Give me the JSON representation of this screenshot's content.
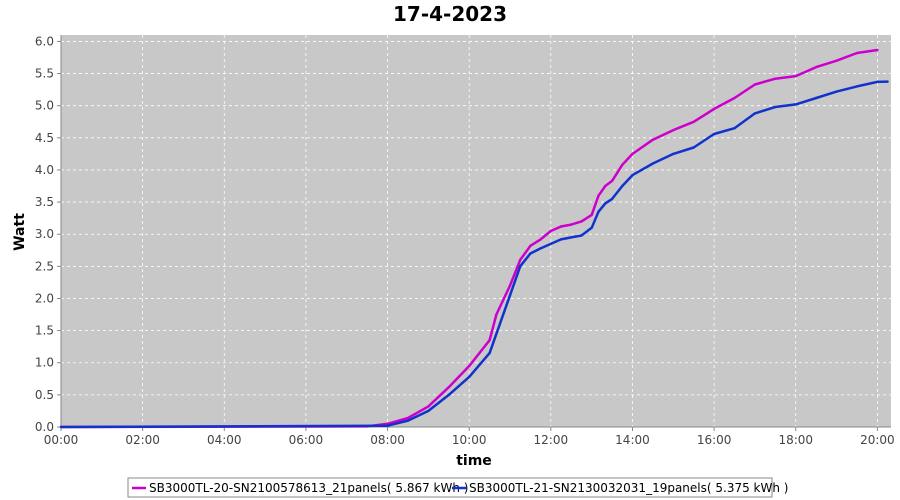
{
  "chart_data": {
    "type": "line",
    "title": "17-4-2023",
    "xlabel": "time",
    "ylabel": "Watt",
    "xlim": [
      "00:00",
      "20:20"
    ],
    "ylim": [
      0,
      6.1
    ],
    "x_ticks": [
      "00:00",
      "02:00",
      "04:00",
      "06:00",
      "08:00",
      "10:00",
      "12:00",
      "14:00",
      "16:00",
      "18:00",
      "20:00"
    ],
    "y_ticks": [
      "0.0",
      "0.5",
      "1.0",
      "1.5",
      "2.0",
      "2.5",
      "3.0",
      "3.5",
      "4.0",
      "4.5",
      "5.0",
      "5.5",
      "6.0"
    ],
    "grid": true,
    "legend_position": "bottom",
    "background_color": "#c8c8c8",
    "series": [
      {
        "name": "SB3000TL-20-SN2100578613_21panels( 5.867 kWh )",
        "color": "#cc00cc",
        "x": [
          "00:00",
          "07:30",
          "08:00",
          "08:30",
          "09:00",
          "09:30",
          "10:00",
          "10:30",
          "10:40",
          "11:00",
          "11:15",
          "11:30",
          "11:45",
          "12:00",
          "12:15",
          "12:30",
          "12:45",
          "13:00",
          "13:10",
          "13:20",
          "13:30",
          "13:45",
          "14:00",
          "14:30",
          "15:00",
          "15:30",
          "16:00",
          "16:30",
          "17:00",
          "17:30",
          "18:00",
          "18:30",
          "19:00",
          "19:30",
          "20:00"
        ],
        "values": [
          0.0,
          0.01,
          0.05,
          0.14,
          0.32,
          0.62,
          0.95,
          1.35,
          1.75,
          2.2,
          2.6,
          2.82,
          2.92,
          3.05,
          3.12,
          3.15,
          3.2,
          3.3,
          3.6,
          3.75,
          3.83,
          4.08,
          4.25,
          4.47,
          4.62,
          4.75,
          4.95,
          5.12,
          5.33,
          5.42,
          5.46,
          5.6,
          5.7,
          5.82,
          5.867
        ]
      },
      {
        "name": "SB3000TL-21-SN2130032031_19panels( 5.375 kWh )",
        "color": "#1133cc",
        "x": [
          "00:00",
          "08:00",
          "08:30",
          "09:00",
          "09:30",
          "10:00",
          "10:30",
          "10:45",
          "11:00",
          "11:15",
          "11:30",
          "11:45",
          "12:00",
          "12:15",
          "12:30",
          "12:45",
          "13:00",
          "13:10",
          "13:20",
          "13:30",
          "13:45",
          "14:00",
          "14:30",
          "15:00",
          "15:30",
          "16:00",
          "16:30",
          "17:00",
          "17:30",
          "18:00",
          "18:30",
          "19:00",
          "19:30",
          "20:00",
          "20:15"
        ],
        "values": [
          0.0,
          0.02,
          0.1,
          0.25,
          0.5,
          0.78,
          1.15,
          1.6,
          2.05,
          2.5,
          2.7,
          2.78,
          2.85,
          2.92,
          2.95,
          2.98,
          3.1,
          3.35,
          3.48,
          3.55,
          3.75,
          3.92,
          4.1,
          4.25,
          4.35,
          4.56,
          4.65,
          4.88,
          4.98,
          5.02,
          5.12,
          5.22,
          5.3,
          5.37,
          5.375
        ]
      }
    ]
  }
}
